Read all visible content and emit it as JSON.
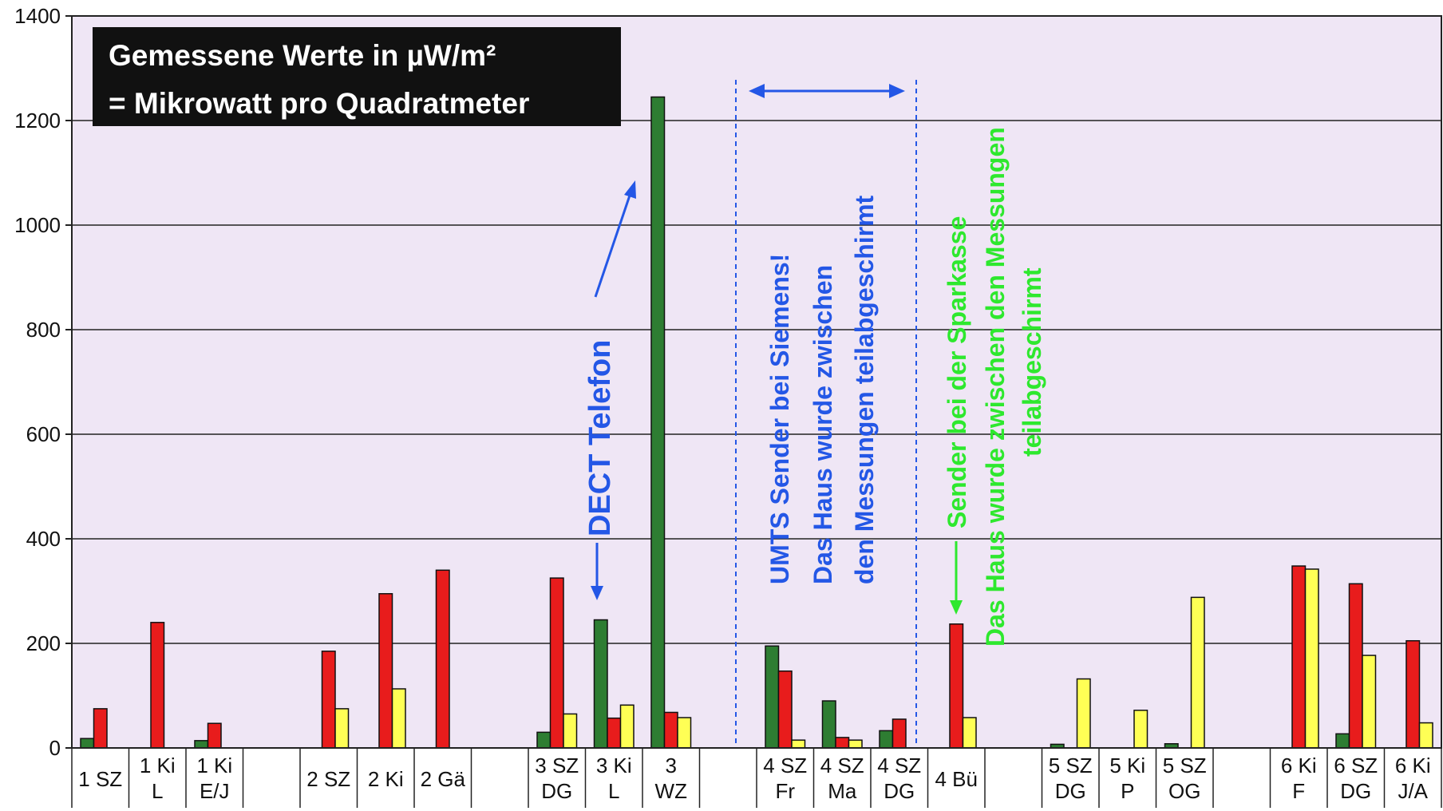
{
  "chart_data": {
    "type": "bar",
    "ylim": [
      0,
      1400
    ],
    "yticks": [
      0,
      200,
      400,
      600,
      800,
      1000,
      1200,
      1400
    ],
    "grid": true,
    "title_box": {
      "line1": "Gemessene Werte in µW/m²",
      "line2": "= Mikrowatt pro Quadratmeter"
    },
    "categories": [
      {
        "label": [
          "1 SZ"
        ],
        "values": [
          18,
          75,
          0
        ]
      },
      {
        "label": [
          "1 Ki",
          "L"
        ],
        "values": [
          0,
          240,
          0
        ]
      },
      {
        "label": [
          "1 Ki",
          "E/J"
        ],
        "values": [
          14,
          47,
          0
        ]
      },
      {
        "label": [
          ""
        ],
        "values": [
          0,
          0,
          0
        ]
      },
      {
        "label": [
          "2 SZ"
        ],
        "values": [
          0,
          185,
          75
        ]
      },
      {
        "label": [
          "2 Ki"
        ],
        "values": [
          0,
          295,
          113
        ]
      },
      {
        "label": [
          "2 Gä"
        ],
        "values": [
          0,
          340,
          0
        ]
      },
      {
        "label": [
          ""
        ],
        "values": [
          0,
          0,
          0
        ]
      },
      {
        "label": [
          "3 SZ",
          "DG"
        ],
        "values": [
          30,
          325,
          65
        ]
      },
      {
        "label": [
          "3 Ki",
          "L"
        ],
        "values": [
          245,
          57,
          82
        ]
      },
      {
        "label": [
          "3",
          "WZ"
        ],
        "values": [
          1245,
          68,
          58
        ]
      },
      {
        "label": [
          ""
        ],
        "values": [
          0,
          0,
          0
        ]
      },
      {
        "label": [
          "4 SZ",
          "Fr"
        ],
        "values": [
          195,
          147,
          15
        ]
      },
      {
        "label": [
          "4 SZ",
          "Ma"
        ],
        "values": [
          90,
          20,
          15
        ]
      },
      {
        "label": [
          "4 SZ",
          "DG"
        ],
        "values": [
          33,
          55,
          0
        ]
      },
      {
        "label": [
          "4 Bü"
        ],
        "values": [
          0,
          237,
          58
        ]
      },
      {
        "label": [
          ""
        ],
        "values": [
          0,
          0,
          0
        ]
      },
      {
        "label": [
          "5 SZ",
          "DG"
        ],
        "values": [
          7,
          0,
          132
        ]
      },
      {
        "label": [
          "5 Ki",
          "P"
        ],
        "values": [
          0,
          0,
          72
        ]
      },
      {
        "label": [
          "5 SZ",
          "OG"
        ],
        "values": [
          8,
          0,
          288
        ]
      },
      {
        "label": [
          ""
        ],
        "values": [
          0,
          0,
          0
        ]
      },
      {
        "label": [
          "6 Ki",
          "F"
        ],
        "values": [
          0,
          348,
          342
        ]
      },
      {
        "label": [
          "6 SZ",
          "DG"
        ],
        "values": [
          27,
          314,
          177
        ]
      },
      {
        "label": [
          "6 Ki",
          "J/A"
        ],
        "values": [
          0,
          205,
          48
        ]
      }
    ],
    "series_colors": [
      "#2e7d32",
      "#e81c1c",
      "#ffff55"
    ],
    "annotations": {
      "dect": "DECT Telefon",
      "umts": [
        "UMTS Sender bei Siemens!",
        "Das Haus wurde zwischen",
        "den Messungen teilabgeschirmt"
      ],
      "sparkasse": [
        "Sender bei der Sparkasse",
        "Das Haus wurde zwischen den Messungen",
        "teilabgeschirmt"
      ]
    },
    "colors": {
      "plot_bg": "#efe6f5",
      "blue_text": "#2457e6",
      "green_text": "#2ee82e"
    }
  }
}
